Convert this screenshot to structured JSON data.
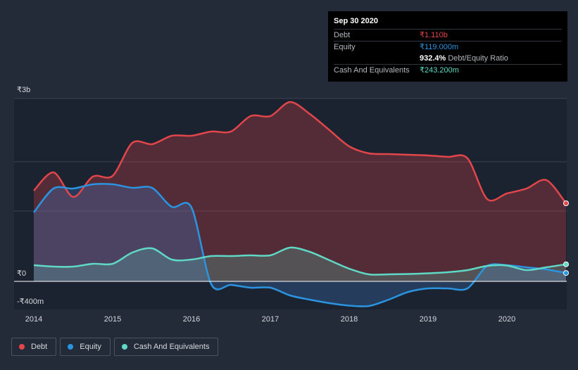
{
  "tooltip": {
    "date": "Sep 30 2020",
    "debt_label": "Debt",
    "debt_value": "₹1.110b",
    "equity_label": "Equity",
    "equity_value": "₹119.000m",
    "ratio_value": "932.4%",
    "ratio_label": "Debt/Equity Ratio",
    "cash_label": "Cash And Equivalents",
    "cash_value": "₹243.200m"
  },
  "legend": {
    "debt": "Debt",
    "equity": "Equity",
    "cash": "Cash And Equivalents"
  },
  "colors": {
    "debt": "#e2464a",
    "equity": "#2b94e0",
    "cash": "#5fd9c5",
    "background": "#232b39"
  },
  "chart_data": {
    "type": "area",
    "ylim": [
      -400,
      2600
    ],
    "y_tick_labels": [
      {
        "value": 2600,
        "label": "₹3b"
      },
      {
        "value": 0,
        "label": "₹0"
      },
      {
        "value": -400,
        "label": "-₹400m"
      }
    ],
    "x_tick_labels": [
      {
        "value": 2014,
        "label": "2014"
      },
      {
        "value": 2015,
        "label": "2015"
      },
      {
        "value": 2016,
        "label": "2016"
      },
      {
        "value": 2017,
        "label": "2017"
      },
      {
        "value": 2018,
        "label": "2018"
      },
      {
        "value": 2019,
        "label": "2019"
      },
      {
        "value": 2020,
        "label": "2020"
      }
    ],
    "xlim": [
      2013.75,
      2020.75
    ],
    "series": [
      {
        "name": "Debt",
        "key": "debt",
        "points": [
          [
            2014.0,
            1290
          ],
          [
            2014.25,
            1550
          ],
          [
            2014.5,
            1200
          ],
          [
            2014.75,
            1490
          ],
          [
            2015.0,
            1500
          ],
          [
            2015.25,
            1970
          ],
          [
            2015.5,
            1950
          ],
          [
            2015.75,
            2070
          ],
          [
            2016.0,
            2070
          ],
          [
            2016.25,
            2130
          ],
          [
            2016.5,
            2130
          ],
          [
            2016.75,
            2350
          ],
          [
            2017.0,
            2350
          ],
          [
            2017.25,
            2550
          ],
          [
            2017.5,
            2380
          ],
          [
            2017.75,
            2150
          ],
          [
            2018.0,
            1920
          ],
          [
            2018.25,
            1820
          ],
          [
            2018.5,
            1810
          ],
          [
            2018.75,
            1800
          ],
          [
            2019.0,
            1790
          ],
          [
            2019.25,
            1770
          ],
          [
            2019.5,
            1750
          ],
          [
            2019.75,
            1170
          ],
          [
            2020.0,
            1250
          ],
          [
            2020.25,
            1320
          ],
          [
            2020.5,
            1440
          ],
          [
            2020.75,
            1110
          ]
        ]
      },
      {
        "name": "Equity",
        "key": "equity",
        "points": [
          [
            2014.0,
            980
          ],
          [
            2014.25,
            1320
          ],
          [
            2014.5,
            1320
          ],
          [
            2014.75,
            1380
          ],
          [
            2015.0,
            1380
          ],
          [
            2015.25,
            1330
          ],
          [
            2015.5,
            1330
          ],
          [
            2015.75,
            1060
          ],
          [
            2016.0,
            1050
          ],
          [
            2016.25,
            -40
          ],
          [
            2016.5,
            -50
          ],
          [
            2016.75,
            -90
          ],
          [
            2017.0,
            -90
          ],
          [
            2017.25,
            -200
          ],
          [
            2017.5,
            -260
          ],
          [
            2017.75,
            -310
          ],
          [
            2018.0,
            -345
          ],
          [
            2018.25,
            -350
          ],
          [
            2018.5,
            -260
          ],
          [
            2018.75,
            -150
          ],
          [
            2019.0,
            -100
          ],
          [
            2019.25,
            -100
          ],
          [
            2019.5,
            -100
          ],
          [
            2019.75,
            220
          ],
          [
            2020.0,
            230
          ],
          [
            2020.25,
            200
          ],
          [
            2020.5,
            170
          ],
          [
            2020.75,
            119
          ]
        ]
      },
      {
        "name": "Cash And Equivalents",
        "key": "cash",
        "points": [
          [
            2014.0,
            230
          ],
          [
            2014.25,
            210
          ],
          [
            2014.5,
            210
          ],
          [
            2014.75,
            250
          ],
          [
            2015.0,
            250
          ],
          [
            2015.25,
            410
          ],
          [
            2015.5,
            470
          ],
          [
            2015.75,
            310
          ],
          [
            2016.0,
            310
          ],
          [
            2016.25,
            360
          ],
          [
            2016.5,
            360
          ],
          [
            2016.75,
            370
          ],
          [
            2017.0,
            370
          ],
          [
            2017.25,
            480
          ],
          [
            2017.5,
            420
          ],
          [
            2017.75,
            300
          ],
          [
            2018.0,
            180
          ],
          [
            2018.25,
            100
          ],
          [
            2018.5,
            100
          ],
          [
            2018.75,
            105
          ],
          [
            2019.0,
            115
          ],
          [
            2019.25,
            130
          ],
          [
            2019.5,
            160
          ],
          [
            2019.75,
            220
          ],
          [
            2020.0,
            225
          ],
          [
            2020.25,
            160
          ],
          [
            2020.5,
            200
          ],
          [
            2020.75,
            243
          ]
        ]
      }
    ]
  }
}
